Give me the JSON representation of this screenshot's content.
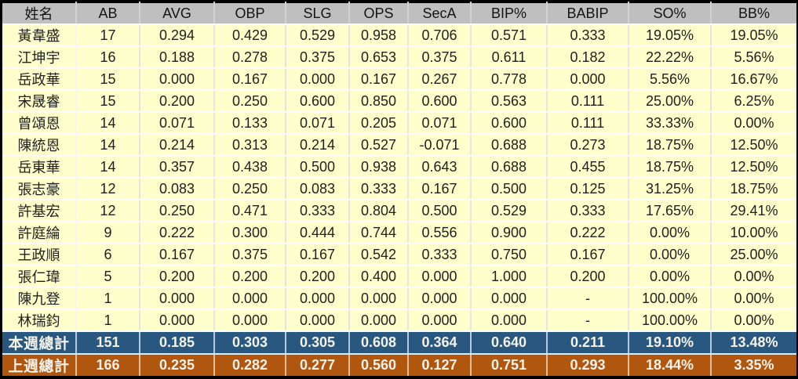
{
  "table": {
    "columns": [
      "姓名",
      "AB",
      "AVG",
      "OBP",
      "SLG",
      "OPS",
      "SecA",
      "BIP%",
      "BABIP",
      "SO%",
      "BB%"
    ],
    "rows": [
      [
        "黃韋盛",
        "17",
        "0.294",
        "0.429",
        "0.529",
        "0.958",
        "0.706",
        "0.571",
        "0.333",
        "19.05%",
        "19.05%"
      ],
      [
        "江坤宇",
        "16",
        "0.188",
        "0.278",
        "0.375",
        "0.653",
        "0.375",
        "0.611",
        "0.182",
        "22.22%",
        "5.56%"
      ],
      [
        "岳政華",
        "15",
        "0.000",
        "0.167",
        "0.000",
        "0.167",
        "0.267",
        "0.778",
        "0.000",
        "5.56%",
        "16.67%"
      ],
      [
        "宋晟睿",
        "15",
        "0.200",
        "0.250",
        "0.600",
        "0.850",
        "0.600",
        "0.563",
        "0.111",
        "25.00%",
        "6.25%"
      ],
      [
        "曾頌恩",
        "14",
        "0.071",
        "0.133",
        "0.071",
        "0.205",
        "0.071",
        "0.600",
        "0.111",
        "33.33%",
        "0.00%"
      ],
      [
        "陳統恩",
        "14",
        "0.214",
        "0.313",
        "0.214",
        "0.527",
        "-0.071",
        "0.688",
        "0.273",
        "18.75%",
        "12.50%"
      ],
      [
        "岳東華",
        "14",
        "0.357",
        "0.438",
        "0.500",
        "0.938",
        "0.643",
        "0.688",
        "0.455",
        "18.75%",
        "12.50%"
      ],
      [
        "張志豪",
        "12",
        "0.083",
        "0.250",
        "0.083",
        "0.333",
        "0.167",
        "0.500",
        "0.125",
        "31.25%",
        "18.75%"
      ],
      [
        "許基宏",
        "12",
        "0.250",
        "0.471",
        "0.333",
        "0.804",
        "0.500",
        "0.529",
        "0.333",
        "17.65%",
        "29.41%"
      ],
      [
        "許庭綸",
        "9",
        "0.222",
        "0.300",
        "0.444",
        "0.744",
        "0.556",
        "0.900",
        "0.222",
        "0.00%",
        "10.00%"
      ],
      [
        "王政順",
        "6",
        "0.167",
        "0.375",
        "0.167",
        "0.542",
        "0.333",
        "0.750",
        "0.167",
        "0.00%",
        "25.00%"
      ],
      [
        "張仁瑋",
        "5",
        "0.200",
        "0.200",
        "0.200",
        "0.400",
        "0.000",
        "1.000",
        "0.200",
        "0.00%",
        "0.00%"
      ],
      [
        "陳九登",
        "1",
        "0.000",
        "0.000",
        "0.000",
        "0.000",
        "0.000",
        "0.000",
        "-",
        "100.00%",
        "0.00%"
      ],
      [
        "林瑞鈞",
        "1",
        "0.000",
        "0.000",
        "0.000",
        "0.000",
        "0.000",
        "0.000",
        "-",
        "100.00%",
        "0.00%"
      ]
    ],
    "totals": [
      {
        "label": "本週總計",
        "values": [
          "151",
          "0.185",
          "0.303",
          "0.305",
          "0.608",
          "0.364",
          "0.640",
          "0.211",
          "19.10%",
          "13.48%"
        ]
      },
      {
        "label": "上週總計",
        "values": [
          "166",
          "0.235",
          "0.282",
          "0.277",
          "0.560",
          "0.127",
          "0.751",
          "0.293",
          "18.44%",
          "3.35%"
        ]
      }
    ]
  },
  "colors": {
    "page_background": "#000000",
    "header_background": "#BFBFBF",
    "cell_background": "#FFFFCC",
    "this_week_row_background": "#28587F",
    "last_week_row_background": "#B0560F",
    "total_row_text": "#F7F3EA",
    "data_text": "#1F1F1F"
  },
  "chart_data": {
    "type": "table",
    "title": "",
    "columns": [
      "姓名",
      "AB",
      "AVG",
      "OBP",
      "SLG",
      "OPS",
      "SecA",
      "BIP%",
      "BABIP",
      "SO%",
      "BB%"
    ],
    "rows": [
      [
        "黃韋盛",
        17,
        0.294,
        0.429,
        0.529,
        0.958,
        0.706,
        0.571,
        0.333,
        "19.05%",
        "19.05%"
      ],
      [
        "江坤宇",
        16,
        0.188,
        0.278,
        0.375,
        0.653,
        0.375,
        0.611,
        0.182,
        "22.22%",
        "5.56%"
      ],
      [
        "岳政華",
        15,
        0.0,
        0.167,
        0.0,
        0.167,
        0.267,
        0.778,
        0.0,
        "5.56%",
        "16.67%"
      ],
      [
        "宋晟睿",
        15,
        0.2,
        0.25,
        0.6,
        0.85,
        0.6,
        0.563,
        0.111,
        "25.00%",
        "6.25%"
      ],
      [
        "曾頌恩",
        14,
        0.071,
        0.133,
        0.071,
        0.205,
        0.071,
        0.6,
        0.111,
        "33.33%",
        "0.00%"
      ],
      [
        "陳統恩",
        14,
        0.214,
        0.313,
        0.214,
        0.527,
        -0.071,
        0.688,
        0.273,
        "18.75%",
        "12.50%"
      ],
      [
        "岳東華",
        14,
        0.357,
        0.438,
        0.5,
        0.938,
        0.643,
        0.688,
        0.455,
        "18.75%",
        "12.50%"
      ],
      [
        "張志豪",
        12,
        0.083,
        0.25,
        0.083,
        0.333,
        0.167,
        0.5,
        0.125,
        "31.25%",
        "18.75%"
      ],
      [
        "許基宏",
        12,
        0.25,
        0.471,
        0.333,
        0.804,
        0.5,
        0.529,
        0.333,
        "17.65%",
        "29.41%"
      ],
      [
        "許庭綸",
        9,
        0.222,
        0.3,
        0.444,
        0.744,
        0.556,
        0.9,
        0.222,
        "0.00%",
        "10.00%"
      ],
      [
        "王政順",
        6,
        0.167,
        0.375,
        0.167,
        0.542,
        0.333,
        0.75,
        0.167,
        "0.00%",
        "25.00%"
      ],
      [
        "張仁瑋",
        5,
        0.2,
        0.2,
        0.2,
        0.4,
        0.0,
        1.0,
        0.2,
        "0.00%",
        "0.00%"
      ],
      [
        "陳九登",
        1,
        0.0,
        0.0,
        0.0,
        0.0,
        0.0,
        0.0,
        "-",
        "100.00%",
        "0.00%"
      ],
      [
        "林瑞鈞",
        1,
        0.0,
        0.0,
        0.0,
        0.0,
        0.0,
        0.0,
        "-",
        "100.00%",
        "0.00%"
      ],
      [
        "本週總計",
        151,
        0.185,
        0.303,
        0.305,
        0.608,
        0.364,
        0.64,
        0.211,
        "19.10%",
        "13.48%"
      ],
      [
        "上週總計",
        166,
        0.235,
        0.282,
        0.277,
        0.56,
        0.127,
        0.751,
        0.293,
        "18.44%",
        "3.35%"
      ]
    ]
  }
}
